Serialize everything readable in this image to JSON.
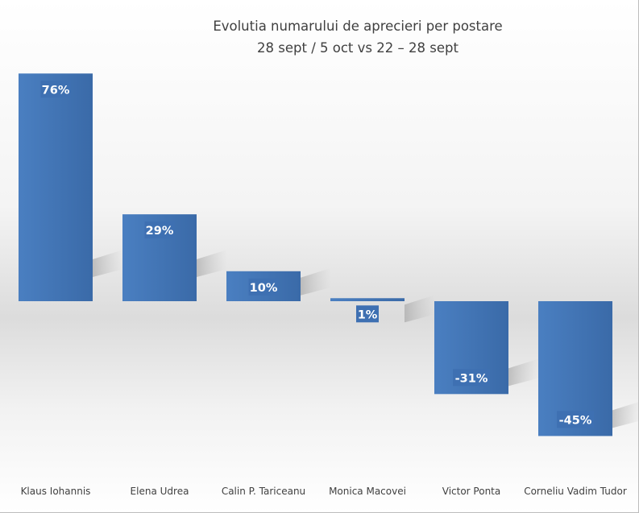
{
  "chart_data": {
    "type": "bar",
    "title": "Evolutia numarului de aprecieri per postare",
    "subtitle": "28 sept / 5 oct vs  22 – 28 sept",
    "categories": [
      "Klaus Iohannis",
      "Elena Udrea",
      "Calin P. Tariceanu",
      "Monica Macovei",
      "Victor Ponta",
      "Corneliu Vadim Tudor"
    ],
    "values": [
      76,
      29,
      10,
      1,
      -31,
      -45
    ],
    "data_labels": [
      "76%",
      "29%",
      "10%",
      "1%",
      "-31%",
      "-45%"
    ],
    "unit": "%",
    "ylim": [
      -45,
      76
    ],
    "grid": false,
    "legend": "none",
    "colors": {
      "bar": "#4a7fc1",
      "bar_dark": "#3a6aa8",
      "label_box": "#3e70b2",
      "text": "#404040"
    }
  }
}
